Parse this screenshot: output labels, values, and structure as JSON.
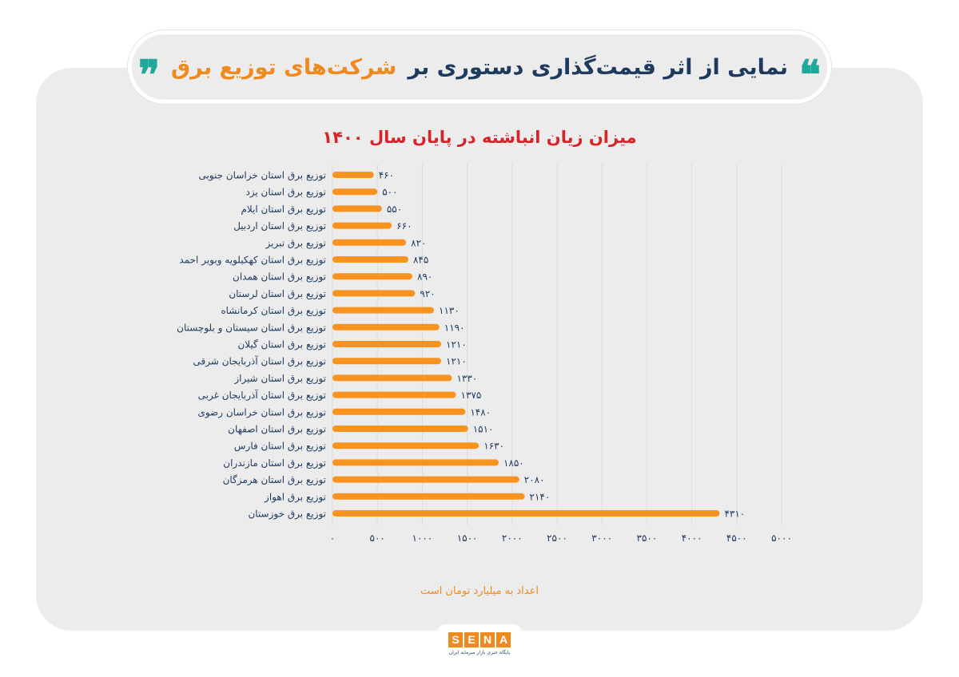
{
  "header": {
    "title_part1": "نمایی از اثر قیمت‌گذاری دستوری بر",
    "title_part2": "شرکت‌های توزیع برق",
    "quote_open": "❝",
    "quote_close": "❞"
  },
  "footer": {
    "unit_note": "اعداد به میلیارد تومان است",
    "logo_letters": [
      "S",
      "E",
      "N",
      "A"
    ],
    "logo_subtitle": "پایگاه خبری بازار سرمایه ایران"
  },
  "colors": {
    "bar": "#f7931e",
    "label": "#1e3a5f",
    "title": "#d9232a",
    "accent": "#f08a1e",
    "quote": "#1ea99c"
  },
  "chart_data": {
    "type": "bar",
    "orientation": "horizontal",
    "title": "میزان زیان انباشته در پایان سال ۱۴۰۰",
    "categories": [
      "توزیع برق استان خراسان جنوبی",
      "توزیع  برق استان یزد",
      "توزیع برق استان ایلام",
      "توزیع برق استان اردبیل",
      "توزیع برق تبریز",
      "توزیع برق استان کهکیلویه وبویر احمد",
      "توزیع برق استان همدان",
      "توزیع برق استان لرستان",
      "توزیع برق استان کرمانشاه",
      "توزیع برق استان سیستان و بلوچستان",
      "توزیع برق استان گیلان",
      "توزیع برق استان آذربایجان شرقی",
      "توزیع برق استان شیراز",
      "توزیع برق استان آذربایجان غربی",
      "توزیع برق استان خراسان رضوی",
      "توزیع برق استان اصفهان",
      "توزیع برق استان فارس",
      "توزیع برق استان مازندران",
      "توزیع برق استان هرمزگان",
      "توزیع برق اهواز",
      "توزیع برق خوزستان"
    ],
    "values": [
      460,
      500,
      550,
      660,
      820,
      845,
      890,
      920,
      1130,
      1190,
      1210,
      1210,
      1330,
      1375,
      1480,
      1510,
      1630,
      1850,
      2080,
      2140,
      4310
    ],
    "value_labels": [
      "۴۶۰",
      "۵۰۰",
      "۵۵۰",
      "۶۶۰",
      "۸۲۰",
      "۸۴۵",
      "۸۹۰",
      "۹۲۰",
      "۱۱۳۰",
      "۱۱۹۰",
      "۱۲۱۰",
      "۱۲۱۰",
      "۱۳۳۰",
      "۱۳۷۵",
      "۱۴۸۰",
      "۱۵۱۰",
      "۱۶۳۰",
      "۱۸۵۰",
      "۲۰۸۰",
      "۲۱۴۰",
      "۴۳۱۰"
    ],
    "xlim": [
      0,
      5000
    ],
    "x_ticks": [
      0,
      500,
      1000,
      1500,
      2000,
      2500,
      3000,
      3500,
      4000,
      4500,
      5000
    ],
    "x_tick_labels": [
      "۰",
      "۵۰۰",
      "۱۰۰۰",
      "۱۵۰۰",
      "۲۰۰۰",
      "۲۵۰۰",
      "۳۰۰۰",
      "۳۵۰۰",
      "۴۰۰۰",
      "۴۵۰۰",
      "۵۰۰۰"
    ],
    "grid": true,
    "legend": "none"
  }
}
